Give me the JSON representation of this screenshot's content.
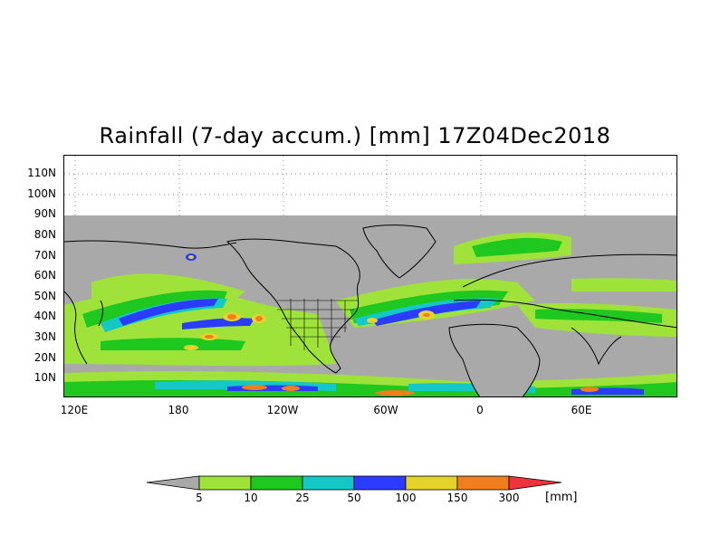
{
  "title": "Rainfall (7-day accum.) [mm] 17Z04Dec2018",
  "map": {
    "y_labels": [
      "110N",
      "100N",
      "90N",
      "80N",
      "70N",
      "60N",
      "50N",
      "40N",
      "30N",
      "20N",
      "10N"
    ],
    "x_labels": [
      "120E",
      "180",
      "120W",
      "60W",
      "0",
      "60E"
    ],
    "no_data_color": "#a9a9a9",
    "projection": "equirectangular, 120E to ~120E+360 longitude, 0 to 115N latitude"
  },
  "colorbar": {
    "labels": [
      "5",
      "10",
      "25",
      "50",
      "100",
      "150",
      "300"
    ],
    "unit": "[mm]",
    "colors": [
      "#a9a9a9",
      "#9ee23a",
      "#1ec81e",
      "#14c8c8",
      "#2b3bff",
      "#e6d22d",
      "#f07d1e",
      "#f0323c"
    ]
  }
}
